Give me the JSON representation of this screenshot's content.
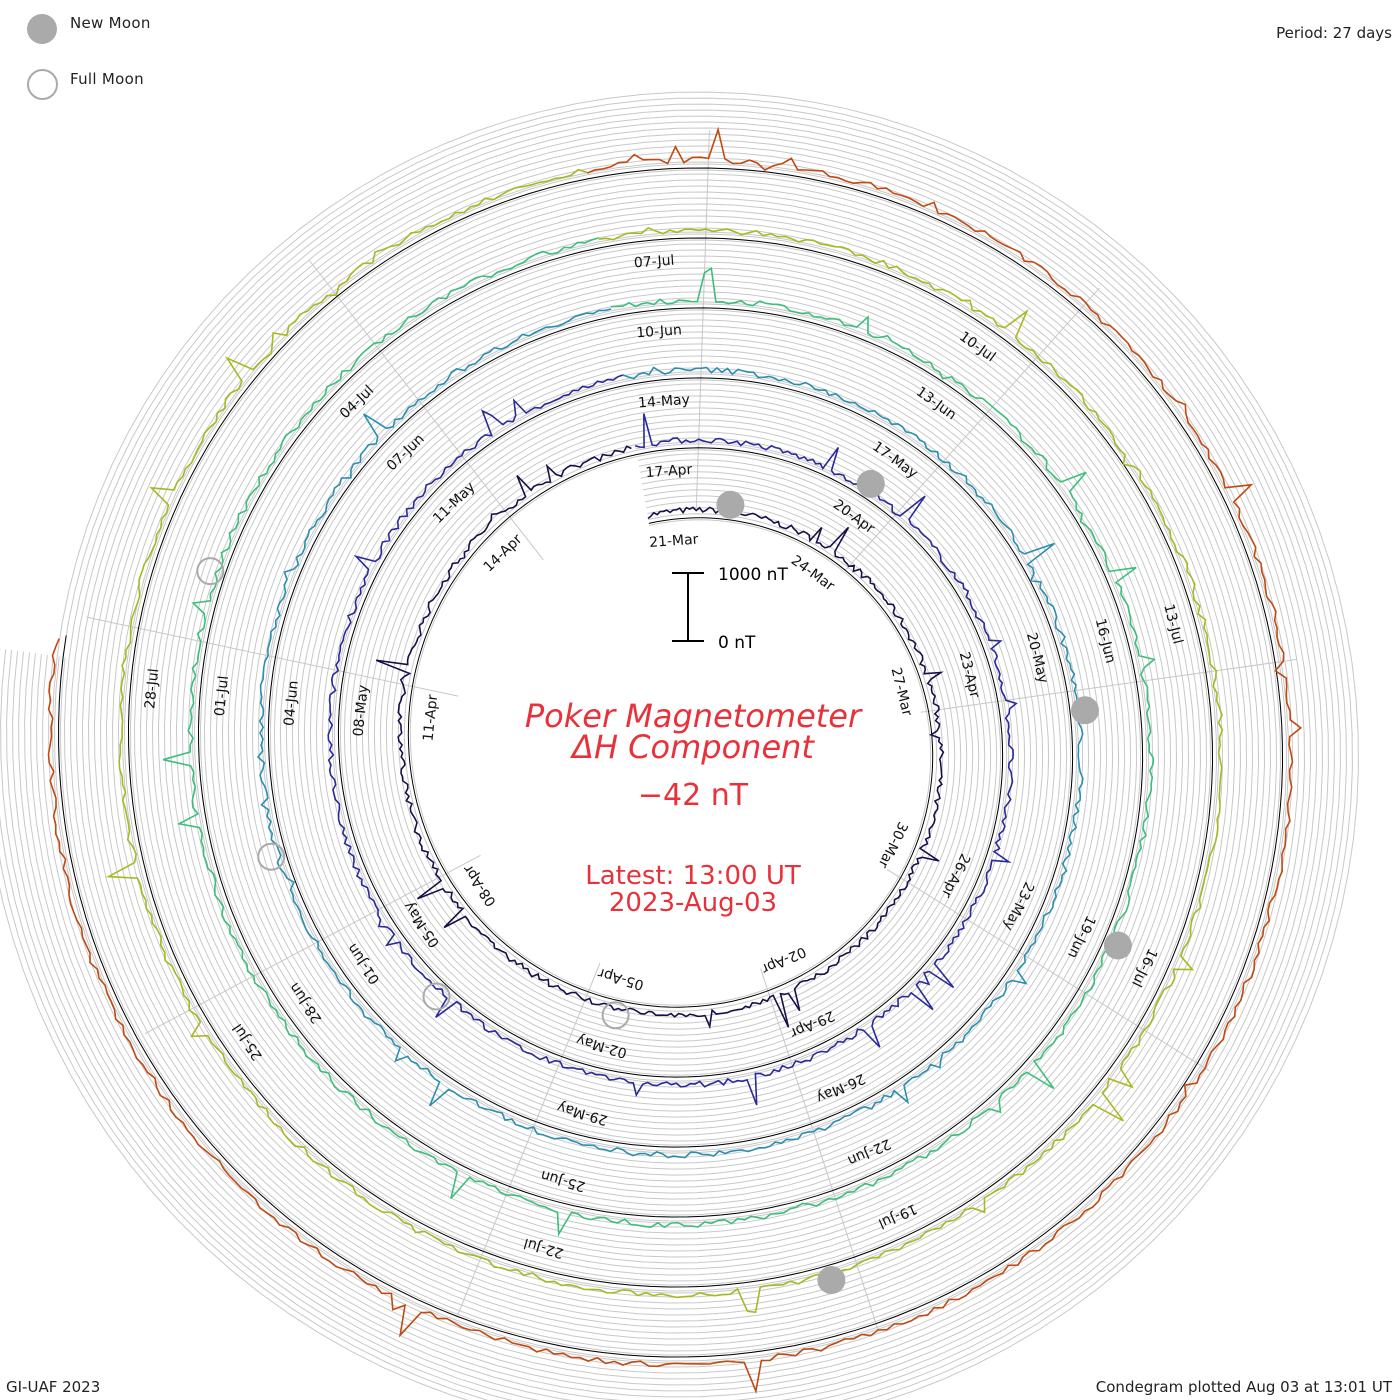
{
  "legend": {
    "new_moon_label": "New Moon",
    "full_moon_label": "Full Moon",
    "new_moon_color": "#aaaaaa",
    "full_moon_color": "#aaaaaa"
  },
  "header": {
    "period_label": "Period: 27 days"
  },
  "footer": {
    "credit": "GI-UAF 2023",
    "plotted": "Condegram plotted Aug 03 at 13:01 UT"
  },
  "center": {
    "title_line1": "Poker Magnetometer",
    "title_line2": "ΔH Component",
    "current_value": "−42 nT",
    "latest_line1": "Latest: 13:00 UT",
    "latest_line2": "2023-Aug-03",
    "text_color": "#e8313a",
    "scale_top_label": "1000 nT",
    "scale_bottom_label": "0 nT"
  },
  "chart_data": {
    "type": "line",
    "variant": "condegram-spiral",
    "period_days": 27,
    "units": "nT",
    "scale_bar_nT": 1000,
    "cycles": [
      {
        "color": "#1a0f4a",
        "labels": [
          "21-Mar",
          "24-Mar",
          "27-Mar",
          "30-Mar",
          "02-Apr",
          "05-Apr",
          "08-Apr",
          "11-Apr",
          "14-Apr"
        ]
      },
      {
        "color": "#2a2a9a",
        "labels": [
          "17-Apr",
          "20-Apr",
          "23-Apr",
          "26-Apr",
          "29-Apr",
          "02-May",
          "05-May",
          "08-May",
          "11-May"
        ]
      },
      {
        "color": "#2a8fb0",
        "labels": [
          "14-May",
          "17-May",
          "20-May",
          "23-May",
          "26-May",
          "29-May",
          "01-Jun",
          "04-Jun",
          "07-Jun"
        ]
      },
      {
        "color": "#3bbf7a",
        "labels": [
          "10-Jun",
          "13-Jun",
          "16-Jun",
          "19-Jun",
          "22-Jun",
          "25-Jun",
          "28-Jun",
          "01-Jul",
          "04-Jul"
        ]
      },
      {
        "color": "#a8b820",
        "labels": [
          "07-Jul",
          "10-Jul",
          "13-Jul",
          "16-Jul",
          "19-Jul",
          "22-Jul",
          "25-Jul",
          "28-Jul"
        ]
      },
      {
        "color": "#c04a10",
        "labels": []
      }
    ],
    "new_moon_dates": [
      "2023-Mar-21",
      "2023-Apr-20",
      "2023-May-19",
      "2023-Jun-18",
      "2023-Jul-17"
    ],
    "full_moon_dates": [
      "2023-Apr-06",
      "2023-May-05",
      "2023-Jun-04",
      "2023-Jul-03"
    ],
    "latest_value_nT": -42,
    "latest_time": "2023-Aug-03 13:00 UT",
    "title": "Poker Magnetometer ΔH Component"
  }
}
